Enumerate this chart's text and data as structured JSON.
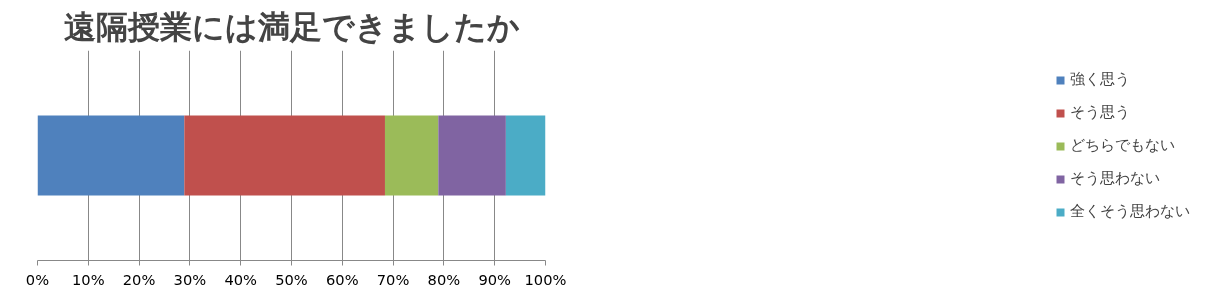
{
  "chart_data": {
    "type": "bar",
    "title": "遠隔授業には満足できましたか",
    "orientation": "horizontal",
    "stacked": true,
    "categories": [
      null
    ],
    "series": [
      {
        "name": "強く思う",
        "color": "#4f81bd",
        "values": [
          28.9
        ]
      },
      {
        "name": "そう思う",
        "color": "#c0504d",
        "values": [
          39.5
        ]
      },
      {
        "name": "どちらでもない",
        "color": "#9bbb59",
        "values": [
          10.5
        ]
      },
      {
        "name": "そう思わない",
        "color": "#8064a2",
        "values": [
          13.3
        ]
      },
      {
        "name": "全くそう思わない",
        "color": "#4bacc6",
        "values": [
          7.8
        ]
      }
    ],
    "xlim": [
      0,
      100
    ],
    "xticks": [
      {
        "value": 0,
        "label": "0%"
      },
      {
        "value": 10,
        "label": "10%"
      },
      {
        "value": 20,
        "label": "20%"
      },
      {
        "value": 30,
        "label": "30%"
      },
      {
        "value": 40,
        "label": "40%"
      },
      {
        "value": 50,
        "label": "50%"
      },
      {
        "value": 60,
        "label": "60%"
      },
      {
        "value": 70,
        "label": "70%"
      },
      {
        "value": 80,
        "label": "80%"
      },
      {
        "value": 90,
        "label": "90%"
      },
      {
        "value": 100,
        "label": "100%"
      }
    ],
    "grid": "x",
    "legend": "right",
    "tick_labels": "x"
  }
}
